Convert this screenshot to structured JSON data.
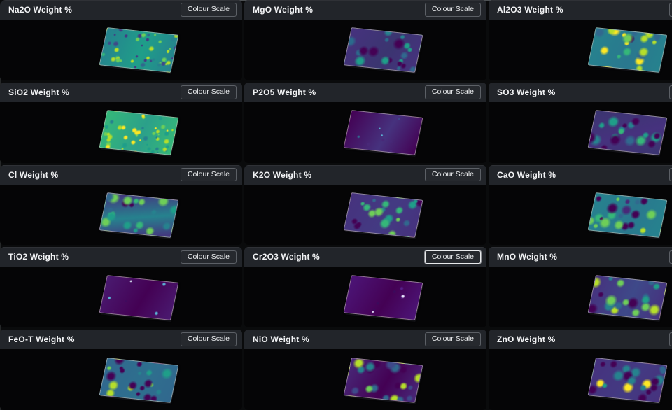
{
  "page": {
    "colour_scale_label": "Colour Scale"
  },
  "colors": {
    "page_bg": "#0a0b0c",
    "panel_body_bg": "#050506",
    "panel_header_bg": "#22252a",
    "title_color": "#f2f3f5",
    "button_bg": "#26292e",
    "button_border": "#5c6066",
    "button_border_active": "#e8eaec",
    "button_text": "#eceef0"
  },
  "panels": [
    {
      "title": "Na2O Weight %",
      "colour_scale_active": false,
      "texture": "speckle",
      "palette": {
        "base": [
          "#26828e",
          "#1f9e89"
        ],
        "base_angle": 100,
        "spots": [
          "#35b779",
          "#b5de2b",
          "#31688e",
          "#3e4989",
          "#6ece58",
          "#26828e",
          "#b5de2b",
          "#443983"
        ]
      }
    },
    {
      "title": "MgO Weight %",
      "colour_scale_active": false,
      "texture": "blob",
      "palette": {
        "base": [
          "#46327e",
          "#3b3570"
        ],
        "base_angle": 115,
        "spots": [
          "#440154",
          "#31688e",
          "#26828e",
          "#440154",
          "#2b6a8c",
          "#b5de2b",
          "#1f9e89"
        ]
      }
    },
    {
      "title": "Al2O3 Weight %",
      "colour_scale_active": false,
      "texture": "blob",
      "palette": {
        "base": [
          "#26828e",
          "#2a788e"
        ],
        "base_angle": 100,
        "spots": [
          "#b5de2b",
          "#6ece58",
          "#fde725",
          "#31688e",
          "#440154",
          "#b5de2b",
          "#35b779"
        ]
      }
    },
    {
      "title": "SiO2 Weight %",
      "colour_scale_active": false,
      "texture": "speckle",
      "palette": {
        "base": [
          "#35b779",
          "#2ba08a"
        ],
        "base_angle": 100,
        "spots": [
          "#b5de2b",
          "#fde725",
          "#6ece58",
          "#26828e",
          "#1f9e89",
          "#fde725",
          "#b5de2b"
        ]
      }
    },
    {
      "title": "P2O5 Weight %",
      "colour_scale_active": false,
      "texture": "sparse",
      "palette": {
        "base": [
          "#440154",
          "#46327e"
        ],
        "base_angle": 110,
        "spots": [
          "#3e4989",
          "#31688e",
          "#5ab4d6",
          "#482878",
          "#5ab4d6"
        ]
      }
    },
    {
      "title": "SO3 Weight %",
      "colour_scale_active": false,
      "texture": "blob",
      "palette": {
        "base": [
          "#3b3570",
          "#46327e"
        ],
        "base_angle": 160,
        "spots": [
          "#26828e",
          "#1f9e89",
          "#440154",
          "#31688e",
          "#35b779",
          "#26828e",
          "#440154"
        ]
      }
    },
    {
      "title": "Cl Weight %",
      "colour_scale_active": false,
      "texture": "blob",
      "palette": {
        "base": [
          "#46327e",
          "#26828e"
        ],
        "base_angle": 170,
        "spots": [
          "#1f9e89",
          "#35b779",
          "#31688e",
          "#440154",
          "#26828e",
          "#6ece58"
        ]
      }
    },
    {
      "title": "K2O Weight %",
      "colour_scale_active": false,
      "texture": "blob",
      "palette": {
        "base": [
          "#46327e",
          "#433a82"
        ],
        "base_angle": 110,
        "spots": [
          "#26828e",
          "#35b779",
          "#6ece58",
          "#31688e",
          "#440154",
          "#1f9e89",
          "#440154"
        ]
      }
    },
    {
      "title": "CaO Weight %",
      "colour_scale_active": false,
      "texture": "blob",
      "palette": {
        "base": [
          "#26828e",
          "#2a788e"
        ],
        "base_angle": 105,
        "spots": [
          "#440154",
          "#482878",
          "#6ece58",
          "#b5de2b",
          "#31688e",
          "#440154",
          "#35b779"
        ]
      }
    },
    {
      "title": "TiO2 Weight %",
      "colour_scale_active": false,
      "texture": "sparse",
      "palette": {
        "base": [
          "#4a1a70",
          "#440154"
        ],
        "base_angle": 110,
        "spots": [
          "#482878",
          "#dce6f5",
          "#5ab4d6",
          "#3e0b5e",
          "#5ab4d6"
        ]
      }
    },
    {
      "title": "Cr2O3 Weight %",
      "colour_scale_active": true,
      "texture": "sparse",
      "palette": {
        "base": [
          "#4c1577",
          "#440154"
        ],
        "base_angle": 110,
        "spots": [
          "#55208a",
          "#3a0a5c",
          "#e8e8ff",
          "#55208a",
          "#3a0a5c"
        ]
      }
    },
    {
      "title": "MnO Weight %",
      "colour_scale_active": false,
      "texture": "blob",
      "palette": {
        "base": [
          "#46327e",
          "#3e4989"
        ],
        "base_angle": 100,
        "spots": [
          "#26828e",
          "#31688e",
          "#b5de2b",
          "#6ece58",
          "#440154",
          "#26828e",
          "#1f9e89"
        ]
      }
    },
    {
      "title": "FeO-T Weight %",
      "colour_scale_active": false,
      "texture": "blob",
      "palette": {
        "base": [
          "#31688e",
          "#2e6f8e"
        ],
        "base_angle": 105,
        "spots": [
          "#440154",
          "#26828e",
          "#6ece58",
          "#b5de2b",
          "#1f9e89",
          "#482878",
          "#440154"
        ]
      }
    },
    {
      "title": "NiO Weight %",
      "colour_scale_active": false,
      "texture": "blob",
      "palette": {
        "base": [
          "#482878",
          "#440154"
        ],
        "base_angle": 110,
        "spots": [
          "#31688e",
          "#6ece58",
          "#b5de2b",
          "#26828e",
          "#3e4989",
          "#440154"
        ]
      }
    },
    {
      "title": "ZnO Weight %",
      "colour_scale_active": false,
      "texture": "blob",
      "palette": {
        "base": [
          "#46327e",
          "#433a82"
        ],
        "base_angle": 115,
        "spots": [
          "#26828e",
          "#1f9e89",
          "#440154",
          "#31688e",
          "#fde725",
          "#26828e",
          "#440154"
        ]
      }
    }
  ]
}
